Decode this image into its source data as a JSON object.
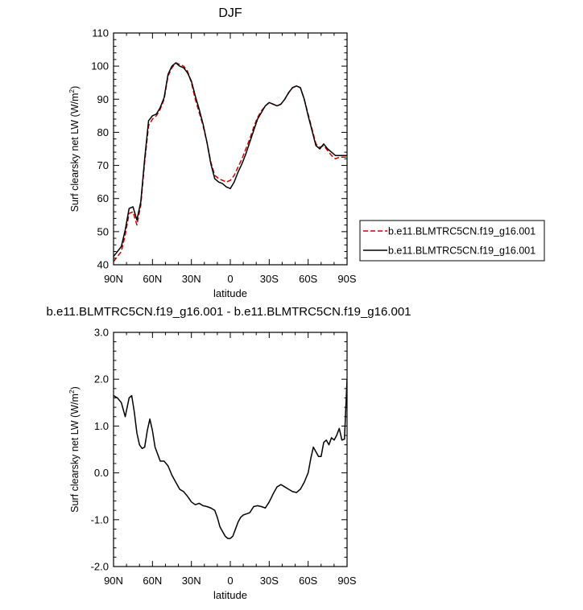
{
  "chart_data": [
    {
      "type": "line",
      "title": "DJF",
      "xlabel": "latitude",
      "ylabel": "Surf clearsky net LW (W/m",
      "ylabel_sup": "2",
      "ylabel_end": ")",
      "xlim": [
        90,
        -90
      ],
      "ylim": [
        40,
        110
      ],
      "x_ticks": [
        90,
        60,
        30,
        0,
        -30,
        -60,
        -90
      ],
      "x_tick_labels": [
        "90N",
        "60N",
        "30N",
        "0",
        "30S",
        "60S",
        "90S"
      ],
      "y_ticks": [
        40,
        50,
        60,
        70,
        80,
        90,
        100,
        110
      ],
      "y_tick_labels": [
        "40",
        "50",
        "60",
        "70",
        "80",
        "90",
        "100",
        "110"
      ],
      "grid": false,
      "legend_position": "right",
      "series": [
        {
          "name": "b.e11.BLMTRC5CN.f19_g16.001",
          "color": "#cc0000",
          "dash": "dashed",
          "x": [
            90,
            87,
            84,
            81,
            78,
            75,
            72,
            69,
            66,
            63,
            60,
            57,
            54,
            51,
            48,
            45,
            42,
            39,
            36,
            33,
            30,
            27,
            24,
            21,
            18,
            15,
            12,
            9,
            6,
            3,
            0,
            -3,
            -6,
            -9,
            -12,
            -15,
            -18,
            -21,
            -24,
            -27,
            -30,
            -33,
            -36,
            -39,
            -42,
            -45,
            -48,
            -51,
            -54,
            -57,
            -60,
            -63,
            -66,
            -69,
            -72,
            -75,
            -78,
            -81,
            -84,
            -87,
            -90
          ],
          "y": [
            41.0,
            42.5,
            44.0,
            49.0,
            55.5,
            56.0,
            52.0,
            58.0,
            71.0,
            82.0,
            84.0,
            85.0,
            87.0,
            90.0,
            97.0,
            99.5,
            101.0,
            100.5,
            100.0,
            98.5,
            95.0,
            90.0,
            86.0,
            82.0,
            77.0,
            71.0,
            67.0,
            66.0,
            65.5,
            65.0,
            65.5,
            67.0,
            69.5,
            72.0,
            75.0,
            78.0,
            81.5,
            84.5,
            86.5,
            88.0,
            89.0,
            88.5,
            88.0,
            88.5,
            90.0,
            92.0,
            93.5,
            94.0,
            93.5,
            90.0,
            85.5,
            81.0,
            76.5,
            75.5,
            76.0,
            74.5,
            73.0,
            72.0,
            72.5,
            72.5,
            72.5
          ]
        },
        {
          "name": "b.e11.BLMTRC5CN.f19_g16.001",
          "color": "#000000",
          "dash": "solid",
          "x": [
            90,
            87,
            84,
            81,
            78,
            75,
            72,
            69,
            66,
            63,
            60,
            57,
            54,
            51,
            48,
            45,
            42,
            39,
            36,
            33,
            30,
            27,
            24,
            21,
            18,
            15,
            12,
            9,
            6,
            3,
            0,
            -3,
            -6,
            -9,
            -12,
            -15,
            -18,
            -21,
            -24,
            -27,
            -30,
            -33,
            -36,
            -39,
            -42,
            -45,
            -48,
            -51,
            -54,
            -57,
            -60,
            -63,
            -66,
            -69,
            -72,
            -75,
            -78,
            -81,
            -84,
            -87,
            -90
          ],
          "y": [
            42.5,
            44.0,
            45.5,
            50.5,
            57.0,
            57.5,
            53.5,
            59.0,
            72.0,
            83.5,
            85.0,
            85.5,
            87.5,
            90.5,
            97.5,
            100.0,
            101.0,
            100.0,
            99.5,
            98.0,
            95.5,
            91.0,
            87.0,
            82.5,
            77.0,
            70.5,
            66.0,
            65.0,
            64.5,
            63.5,
            63.0,
            65.0,
            68.0,
            70.5,
            73.5,
            77.0,
            80.5,
            84.0,
            86.0,
            88.0,
            89.0,
            88.5,
            88.0,
            88.5,
            90.0,
            92.0,
            93.5,
            94.0,
            93.5,
            90.0,
            85.0,
            80.5,
            76.0,
            75.0,
            76.5,
            75.0,
            74.0,
            73.0,
            73.0,
            73.0,
            73.0
          ]
        }
      ]
    },
    {
      "type": "line",
      "title": "b.e11.BLMTRC5CN.f19_g16.001 - b.e11.BLMTRC5CN.f19_g16.001",
      "xlabel": "latitude",
      "ylabel": "Surf clearsky net LW (W/m",
      "ylabel_sup": "2",
      "ylabel_end": ")",
      "xlim": [
        90,
        -90
      ],
      "ylim": [
        -2.0,
        3.0
      ],
      "x_ticks": [
        90,
        60,
        30,
        0,
        -30,
        -60,
        -90
      ],
      "x_tick_labels": [
        "90N",
        "60N",
        "30N",
        "0",
        "30S",
        "60S",
        "90S"
      ],
      "y_ticks": [
        -2.0,
        -1.0,
        0.0,
        1.0,
        2.0,
        3.0
      ],
      "y_tick_labels": [
        "-2.0",
        "-1.0",
        "0.0",
        "1.0",
        "2.0",
        "3.0"
      ],
      "grid": false,
      "series": [
        {
          "color": "#000000",
          "dash": "solid",
          "x": [
            90,
            87,
            84,
            81,
            78,
            76,
            74,
            72,
            70,
            68,
            66,
            64,
            62,
            60,
            58,
            56,
            54,
            51,
            48,
            45,
            42,
            39,
            36,
            33,
            30,
            27,
            24,
            21,
            18,
            15,
            12,
            10,
            8,
            6,
            4,
            2,
            0,
            -2,
            -4,
            -6,
            -8,
            -10,
            -12,
            -15,
            -18,
            -21,
            -24,
            -27,
            -30,
            -33,
            -36,
            -39,
            -42,
            -45,
            -48,
            -51,
            -54,
            -57,
            -60,
            -62,
            -64,
            -66,
            -68,
            -70,
            -72,
            -74,
            -76,
            -78,
            -80,
            -82,
            -84,
            -86,
            -88,
            -90
          ],
          "y": [
            1.65,
            1.6,
            1.5,
            1.2,
            1.6,
            1.65,
            1.3,
            0.85,
            0.6,
            0.52,
            0.55,
            0.9,
            1.15,
            0.9,
            0.55,
            0.4,
            0.25,
            0.25,
            0.15,
            -0.05,
            -0.2,
            -0.35,
            -0.4,
            -0.5,
            -0.62,
            -0.68,
            -0.65,
            -0.7,
            -0.72,
            -0.75,
            -0.8,
            -0.95,
            -1.15,
            -1.25,
            -1.35,
            -1.4,
            -1.4,
            -1.35,
            -1.2,
            -1.05,
            -0.95,
            -0.9,
            -0.88,
            -0.85,
            -0.72,
            -0.7,
            -0.72,
            -0.75,
            -0.62,
            -0.45,
            -0.3,
            -0.25,
            -0.3,
            -0.35,
            -0.4,
            -0.42,
            -0.35,
            -0.2,
            0.0,
            0.3,
            0.55,
            0.45,
            0.35,
            0.35,
            0.65,
            0.7,
            0.6,
            0.75,
            0.7,
            0.8,
            0.95,
            0.7,
            0.72,
            2.0
          ]
        }
      ]
    }
  ]
}
